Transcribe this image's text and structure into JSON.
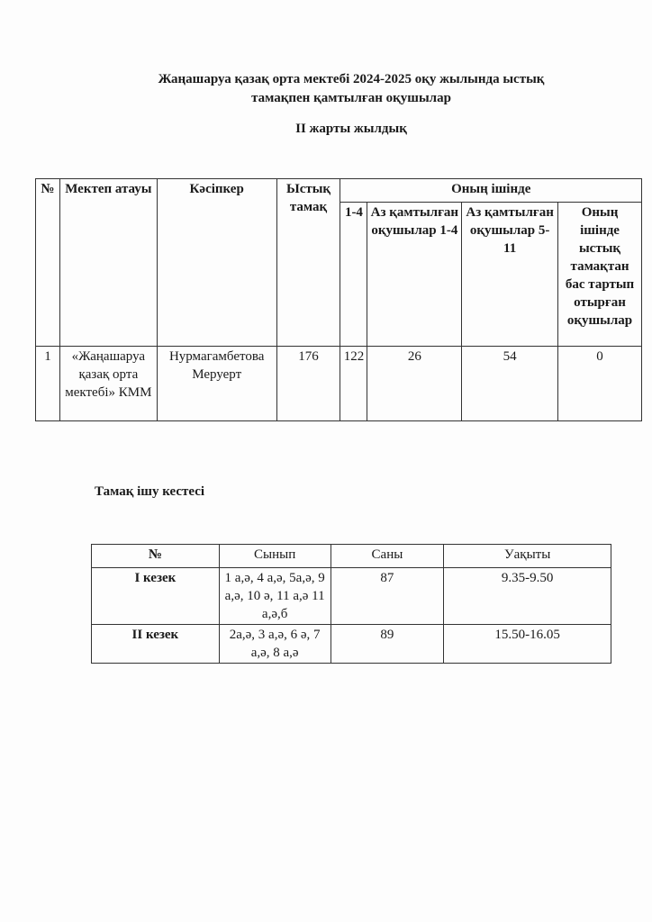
{
  "title_line1": "Жаңашаруа қазақ орта мектебі 2024-2025 оқу жылында ыстық",
  "title_line2": "тамақпен қамтылған оқушылар",
  "subtitle": "II жарты жылдық",
  "table1": {
    "headers": [
      "№",
      "Мектеп атауы",
      "Кәсіпкер",
      "Ыстық тамақ",
      "Оның ішінде"
    ],
    "subheaders": [
      "1-4",
      "Аз қамтылған оқушылар 1-4",
      "Аз қамтылған оқушылар 5-11",
      "Оның ішінде ыстық тамақтан бас тартып отырған оқушылар"
    ],
    "rows": [
      [
        "1",
        "«Жаңашаруа қазақ орта мектебі» КММ",
        "Нурмагамбетова Меруерт",
        "176",
        "122",
        "26",
        "54",
        "0"
      ]
    ]
  },
  "section2_title": "Тамақ ішу кестесі",
  "table2": {
    "headers": [
      "№",
      "Сынып",
      "Саны",
      "Уақыты"
    ],
    "rows": [
      [
        "I кезек",
        "1 а,ә, 4 а,ә, 5а,ә, 9 а,ә, 10 ә, 11 а,ә 11 а,ә,б",
        "87",
        "9.35-9.50"
      ],
      [
        "II кезек",
        "2а,ә, 3 а,ә, 6 ә, 7 а,ә, 8 а,ә",
        "89",
        "15.50-16.05"
      ]
    ]
  }
}
